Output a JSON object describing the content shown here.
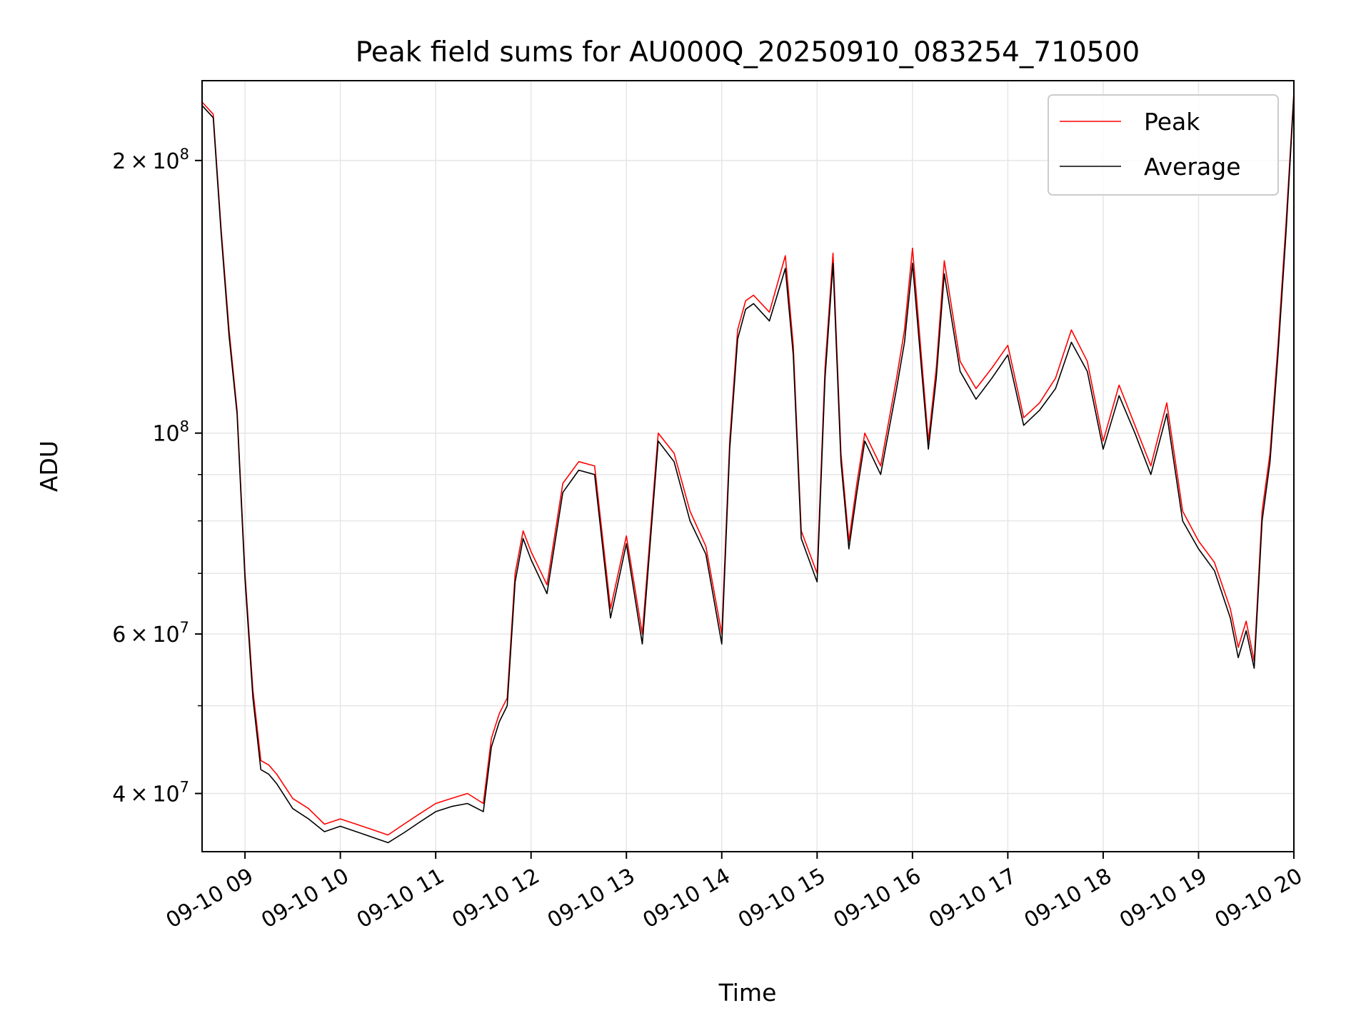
{
  "chart_data": {
    "type": "line",
    "title": "Peak field sums for AU000Q_20250910_083254_710500",
    "xlabel": "Time",
    "ylabel": "ADU",
    "x_axis_type": "datetime",
    "y_scale": "log",
    "xlim": [
      "2025-09-10 08:33",
      "2025-09-10 20:00"
    ],
    "ylim": [
      34500000,
      245000000
    ],
    "grid": true,
    "legend_position": "top-right",
    "x_ticks": [
      {
        "value": "2025-09-10 09:00",
        "label": "09-10 09"
      },
      {
        "value": "2025-09-10 10:00",
        "label": "09-10 10"
      },
      {
        "value": "2025-09-10 11:00",
        "label": "09-10 11"
      },
      {
        "value": "2025-09-10 12:00",
        "label": "09-10 12"
      },
      {
        "value": "2025-09-10 13:00",
        "label": "09-10 13"
      },
      {
        "value": "2025-09-10 14:00",
        "label": "09-10 14"
      },
      {
        "value": "2025-09-10 15:00",
        "label": "09-10 15"
      },
      {
        "value": "2025-09-10 16:00",
        "label": "09-10 16"
      },
      {
        "value": "2025-09-10 17:00",
        "label": "09-10 17"
      },
      {
        "value": "2025-09-10 18:00",
        "label": "09-10 18"
      },
      {
        "value": "2025-09-10 19:00",
        "label": "09-10 19"
      },
      {
        "value": "2025-09-10 20:00",
        "label": "09-10 20"
      }
    ],
    "y_ticks": [
      {
        "value": 40000000,
        "mant": "4",
        "exp": "7"
      },
      {
        "value": 60000000,
        "mant": "6",
        "exp": "7"
      },
      {
        "value": 100000000,
        "mant": "",
        "exp": "8"
      },
      {
        "value": 200000000,
        "mant": "2",
        "exp": "8"
      }
    ],
    "y_minor_ticks": [
      50000000,
      70000000,
      80000000,
      90000000
    ],
    "series": [
      {
        "name": "Peak",
        "color": "#ff0000",
        "x": [
          "2025-09-10 08:33",
          "2025-09-10 08:40",
          "2025-09-10 08:45",
          "2025-09-10 08:50",
          "2025-09-10 08:55",
          "2025-09-10 09:00",
          "2025-09-10 09:05",
          "2025-09-10 09:10",
          "2025-09-10 09:15",
          "2025-09-10 09:20",
          "2025-09-10 09:30",
          "2025-09-10 09:40",
          "2025-09-10 09:50",
          "2025-09-10 10:00",
          "2025-09-10 10:10",
          "2025-09-10 10:20",
          "2025-09-10 10:30",
          "2025-09-10 10:40",
          "2025-09-10 10:50",
          "2025-09-10 11:00",
          "2025-09-10 11:10",
          "2025-09-10 11:20",
          "2025-09-10 11:30",
          "2025-09-10 11:35",
          "2025-09-10 11:40",
          "2025-09-10 11:45",
          "2025-09-10 11:50",
          "2025-09-10 11:55",
          "2025-09-10 12:00",
          "2025-09-10 12:10",
          "2025-09-10 12:20",
          "2025-09-10 12:30",
          "2025-09-10 12:40",
          "2025-09-10 12:50",
          "2025-09-10 13:00",
          "2025-09-10 13:10",
          "2025-09-10 13:20",
          "2025-09-10 13:30",
          "2025-09-10 13:40",
          "2025-09-10 13:50",
          "2025-09-10 14:00",
          "2025-09-10 14:05",
          "2025-09-10 14:10",
          "2025-09-10 14:15",
          "2025-09-10 14:20",
          "2025-09-10 14:30",
          "2025-09-10 14:40",
          "2025-09-10 14:45",
          "2025-09-10 14:50",
          "2025-09-10 15:00",
          "2025-09-10 15:05",
          "2025-09-10 15:10",
          "2025-09-10 15:15",
          "2025-09-10 15:20",
          "2025-09-10 15:25",
          "2025-09-10 15:30",
          "2025-09-10 15:40",
          "2025-09-10 15:50",
          "2025-09-10 15:55",
          "2025-09-10 16:00",
          "2025-09-10 16:10",
          "2025-09-10 16:15",
          "2025-09-10 16:20",
          "2025-09-10 16:30",
          "2025-09-10 16:40",
          "2025-09-10 16:50",
          "2025-09-10 17:00",
          "2025-09-10 17:10",
          "2025-09-10 17:20",
          "2025-09-10 17:30",
          "2025-09-10 17:40",
          "2025-09-10 17:50",
          "2025-09-10 18:00",
          "2025-09-10 18:10",
          "2025-09-10 18:20",
          "2025-09-10 18:30",
          "2025-09-10 18:40",
          "2025-09-10 18:50",
          "2025-09-10 19:00",
          "2025-09-10 19:10",
          "2025-09-10 19:20",
          "2025-09-10 19:25",
          "2025-09-10 19:30",
          "2025-09-10 19:35",
          "2025-09-10 19:40",
          "2025-09-10 19:45",
          "2025-09-10 19:50",
          "2025-09-10 19:55",
          "2025-09-10 20:00"
        ],
        "values": [
          232000000,
          225000000,
          168000000,
          130000000,
          106000000,
          70000000,
          52000000,
          43500000,
          43000000,
          42000000,
          39500000,
          38500000,
          37000000,
          37500000,
          37000000,
          36500000,
          36000000,
          37000000,
          38000000,
          39000000,
          39500000,
          40000000,
          39000000,
          46000000,
          49000000,
          51000000,
          70000000,
          78000000,
          74000000,
          68000000,
          88000000,
          93000000,
          92000000,
          64000000,
          77000000,
          60000000,
          100000000,
          95000000,
          82000000,
          75000000,
          60000000,
          98000000,
          130000000,
          140000000,
          142000000,
          136000000,
          157000000,
          125000000,
          78000000,
          70000000,
          118000000,
          158000000,
          95000000,
          76000000,
          88000000,
          100000000,
          92000000,
          115000000,
          130000000,
          160000000,
          98000000,
          118000000,
          155000000,
          120000000,
          112000000,
          118000000,
          125000000,
          104000000,
          108000000,
          115000000,
          130000000,
          120000000,
          98000000,
          113000000,
          102000000,
          92000000,
          108000000,
          82000000,
          76000000,
          72000000,
          64000000,
          58000000,
          62000000,
          56000000,
          82000000,
          95000000,
          125000000,
          170000000,
          238000000
        ]
      },
      {
        "name": "Average",
        "color": "#000000",
        "x": [
          "2025-09-10 08:33",
          "2025-09-10 08:40",
          "2025-09-10 08:45",
          "2025-09-10 08:50",
          "2025-09-10 08:55",
          "2025-09-10 09:00",
          "2025-09-10 09:05",
          "2025-09-10 09:10",
          "2025-09-10 09:15",
          "2025-09-10 09:20",
          "2025-09-10 09:30",
          "2025-09-10 09:40",
          "2025-09-10 09:50",
          "2025-09-10 10:00",
          "2025-09-10 10:10",
          "2025-09-10 10:20",
          "2025-09-10 10:30",
          "2025-09-10 10:40",
          "2025-09-10 10:50",
          "2025-09-10 11:00",
          "2025-09-10 11:10",
          "2025-09-10 11:20",
          "2025-09-10 11:30",
          "2025-09-10 11:35",
          "2025-09-10 11:40",
          "2025-09-10 11:45",
          "2025-09-10 11:50",
          "2025-09-10 11:55",
          "2025-09-10 12:00",
          "2025-09-10 12:10",
          "2025-09-10 12:20",
          "2025-09-10 12:30",
          "2025-09-10 12:40",
          "2025-09-10 12:50",
          "2025-09-10 13:00",
          "2025-09-10 13:10",
          "2025-09-10 13:20",
          "2025-09-10 13:30",
          "2025-09-10 13:40",
          "2025-09-10 13:50",
          "2025-09-10 14:00",
          "2025-09-10 14:05",
          "2025-09-10 14:10",
          "2025-09-10 14:15",
          "2025-09-10 14:20",
          "2025-09-10 14:30",
          "2025-09-10 14:40",
          "2025-09-10 14:45",
          "2025-09-10 14:50",
          "2025-09-10 15:00",
          "2025-09-10 15:05",
          "2025-09-10 15:10",
          "2025-09-10 15:15",
          "2025-09-10 15:20",
          "2025-09-10 15:25",
          "2025-09-10 15:30",
          "2025-09-10 15:40",
          "2025-09-10 15:50",
          "2025-09-10 15:55",
          "2025-09-10 16:00",
          "2025-09-10 16:10",
          "2025-09-10 16:15",
          "2025-09-10 16:20",
          "2025-09-10 16:30",
          "2025-09-10 16:40",
          "2025-09-10 16:50",
          "2025-09-10 17:00",
          "2025-09-10 17:10",
          "2025-09-10 17:20",
          "2025-09-10 17:30",
          "2025-09-10 17:40",
          "2025-09-10 17:50",
          "2025-09-10 18:00",
          "2025-09-10 18:10",
          "2025-09-10 18:20",
          "2025-09-10 18:30",
          "2025-09-10 18:40",
          "2025-09-10 18:50",
          "2025-09-10 19:00",
          "2025-09-10 19:10",
          "2025-09-10 19:20",
          "2025-09-10 19:25",
          "2025-09-10 19:30",
          "2025-09-10 19:35",
          "2025-09-10 19:40",
          "2025-09-10 19:45",
          "2025-09-10 19:50",
          "2025-09-10 19:55",
          "2025-09-10 20:00"
        ],
        "values": [
          230000000,
          223000000,
          166000000,
          128000000,
          105000000,
          69000000,
          51000000,
          42500000,
          42000000,
          41000000,
          38500000,
          37500000,
          36300000,
          36800000,
          36300000,
          35800000,
          35300000,
          36200000,
          37200000,
          38200000,
          38700000,
          39000000,
          38200000,
          45000000,
          48000000,
          50000000,
          68500000,
          76500000,
          72500000,
          66500000,
          86000000,
          91000000,
          90000000,
          62500000,
          75500000,
          58500000,
          98000000,
          93000000,
          80000000,
          73500000,
          58500000,
          96000000,
          127000000,
          137000000,
          139000000,
          133000000,
          152000000,
          122000000,
          76500000,
          68500000,
          115000000,
          154000000,
          93000000,
          74500000,
          86000000,
          98000000,
          90000000,
          112000000,
          126000000,
          154000000,
          96000000,
          115000000,
          150000000,
          117000000,
          109000000,
          115000000,
          122000000,
          102000000,
          106000000,
          112000000,
          126000000,
          117000000,
          96000000,
          110000000,
          100000000,
          90000000,
          105000000,
          80000000,
          74500000,
          70500000,
          62500000,
          56500000,
          60500000,
          55000000,
          80000000,
          93000000,
          122000000,
          166000000,
          236000000
        ]
      }
    ]
  }
}
